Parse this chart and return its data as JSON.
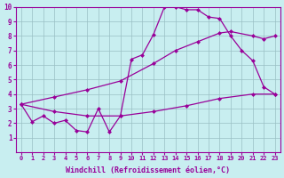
{
  "title": "",
  "xlabel": "Windchill (Refroidissement éolien,°C)",
  "bg_color": "#c8eef0",
  "line_color": "#990099",
  "xlim": [
    -0.5,
    23.5
  ],
  "ylim": [
    0,
    10
  ],
  "series": [
    {
      "x": [
        0,
        1,
        2,
        3,
        4,
        5,
        6,
        7,
        8,
        9,
        10,
        11,
        12,
        13,
        14,
        15,
        16,
        17,
        18,
        19,
        20,
        21,
        22,
        23
      ],
      "y": [
        3.3,
        2.1,
        2.5,
        2.0,
        2.2,
        1.5,
        1.4,
        3.0,
        1.4,
        2.5,
        6.4,
        6.7,
        8.1,
        10.0,
        10.0,
        9.8,
        9.8,
        9.3,
        9.2,
        8.0,
        7.0,
        6.3,
        4.5,
        4.0
      ]
    },
    {
      "x": [
        0,
        3,
        6,
        9,
        12,
        14,
        16,
        18,
        19,
        21,
        22,
        23
      ],
      "y": [
        3.3,
        3.8,
        4.3,
        4.9,
        6.1,
        7.0,
        7.6,
        8.2,
        8.3,
        8.0,
        7.8,
        8.0
      ]
    },
    {
      "x": [
        0,
        3,
        6,
        9,
        12,
        15,
        18,
        21,
        23
      ],
      "y": [
        3.3,
        2.8,
        2.5,
        2.5,
        2.8,
        3.2,
        3.7,
        4.0,
        4.0
      ]
    }
  ],
  "xticks": [
    0,
    1,
    2,
    3,
    4,
    5,
    6,
    7,
    8,
    9,
    10,
    11,
    12,
    13,
    14,
    15,
    16,
    17,
    18,
    19,
    20,
    21,
    22,
    23
  ],
  "yticks": [
    1,
    2,
    3,
    4,
    5,
    6,
    7,
    8,
    9,
    10
  ],
  "xlabel_fontsize": 6,
  "tick_fontsize": 5,
  "line_width": 0.9,
  "marker_style": "D",
  "marker_size": 2.0
}
